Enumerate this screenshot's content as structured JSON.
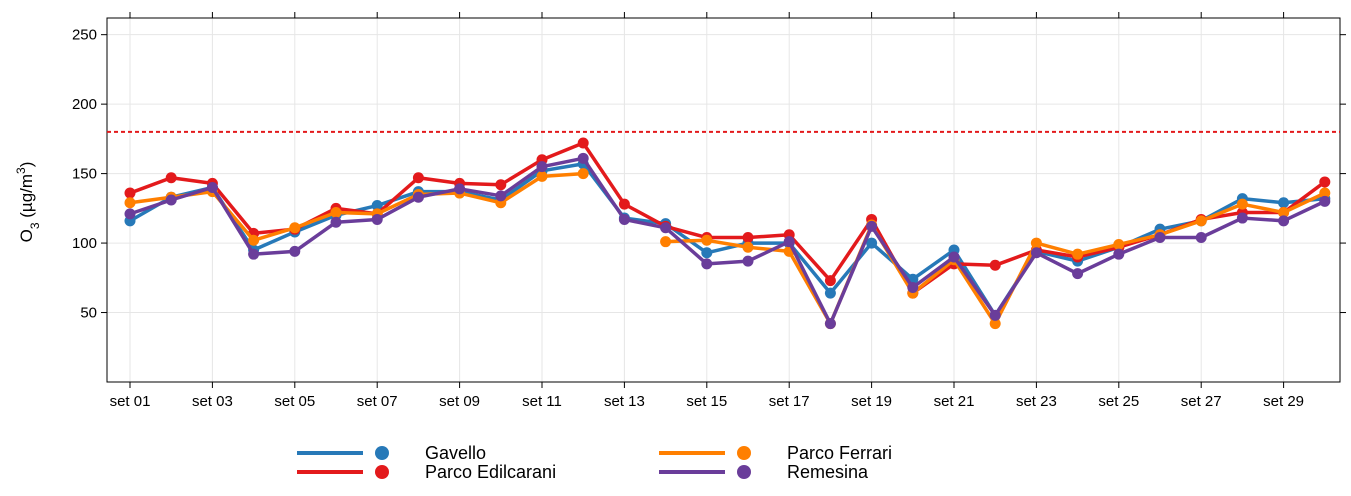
{
  "chart_data": {
    "type": "line",
    "y_label_parts": [
      "O",
      "3",
      " (µg/m",
      "3",
      ")"
    ],
    "categories": [
      "set 01",
      null,
      "set 03",
      null,
      "set 05",
      null,
      "set 07",
      null,
      "set 09",
      null,
      "set 11",
      null,
      "set 13",
      null,
      "set 15",
      null,
      "set 17",
      null,
      "set 19",
      null,
      "set 21",
      null,
      "set 23",
      null,
      "set 25",
      null,
      "set 27",
      null,
      "set 29",
      null
    ],
    "series": [
      {
        "name": "Gavello",
        "color": "#2779b8",
        "values": [
          116,
          133,
          140,
          95,
          108,
          120,
          127,
          137,
          137,
          131,
          152,
          157,
          118,
          114,
          93,
          100,
          100,
          64,
          100,
          74,
          95,
          48,
          94,
          87,
          97,
          110,
          116,
          132,
          129,
          132
        ]
      },
      {
        "name": "Parco Edilcarani",
        "color": "#e31a1c",
        "values": [
          136,
          147,
          143,
          107,
          110,
          125,
          121,
          147,
          143,
          142,
          160,
          172,
          128,
          112,
          104,
          104,
          106,
          73,
          117,
          64,
          85,
          84,
          95,
          90,
          97,
          106,
          117,
          122,
          122,
          144
        ]
      },
      {
        "name": "Parco Ferrari",
        "color": "#ff7f00",
        "values": [
          129,
          133,
          137,
          102,
          111,
          122,
          121,
          135,
          136,
          129,
          148,
          150,
          null,
          101,
          102,
          97,
          94,
          42,
          113,
          64,
          88,
          42,
          100,
          92,
          99,
          106,
          116,
          128,
          122,
          136
        ]
      },
      {
        "name": "Remesina",
        "color": "#6a3d9a",
        "values": [
          121,
          131,
          140,
          92,
          94,
          115,
          117,
          133,
          139,
          134,
          155,
          161,
          117,
          111,
          85,
          87,
          101,
          42,
          112,
          68,
          90,
          48,
          93,
          78,
          92,
          104,
          104,
          118,
          116,
          130
        ]
      }
    ],
    "reference_line": {
      "value": 180,
      "color": "#e31a1c"
    },
    "ylim": [
      0,
      262
    ],
    "yticks": [
      50,
      100,
      150,
      200,
      250
    ],
    "grid": true
  }
}
